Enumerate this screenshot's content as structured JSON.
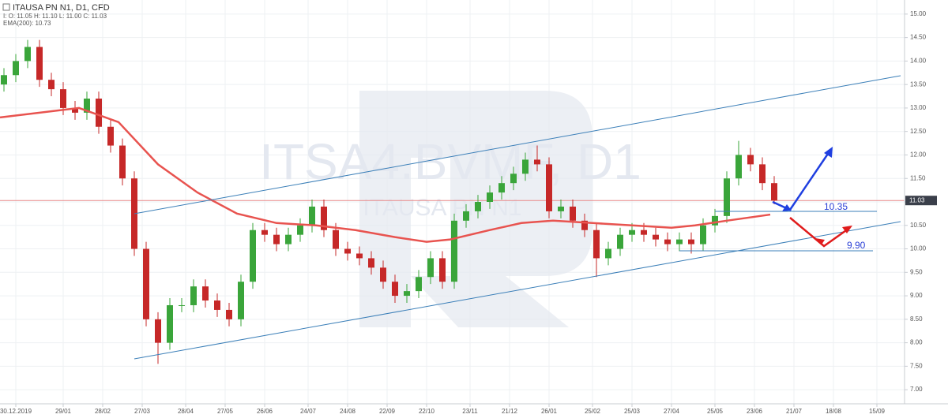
{
  "chart_data": {
    "type": "candlestick",
    "title": "ITAUSA PN N1, D1, CFD",
    "ohlc_label": "I: O: 11.05 H: 11.10 L: 11.00 C: 11.03",
    "ema_label": "EMA(200): 10.73",
    "watermark": "ITSA4.BVMF, D1",
    "watermark_sub": "ITAUSA PN N1",
    "up_color": "#3aa53a",
    "down_color": "#c62828",
    "x": [
      1,
      4,
      7,
      10,
      13,
      16,
      19,
      22,
      25,
      28,
      31,
      34,
      37,
      40,
      43,
      46,
      49,
      52,
      55,
      58,
      61,
      64,
      67,
      70,
      73,
      76,
      79,
      82,
      85,
      88,
      91,
      94,
      97,
      100,
      103,
      106,
      109,
      112,
      115,
      118,
      121,
      124,
      127,
      130,
      133,
      136,
      139,
      142,
      145,
      148,
      151,
      154,
      157,
      160,
      163,
      166,
      169,
      172,
      175,
      178,
      181,
      184,
      187,
      190,
      193,
      196
    ],
    "open": [
      13.5,
      13.7,
      14.0,
      14.3,
      13.6,
      13.4,
      13.0,
      12.9,
      13.2,
      12.6,
      12.2,
      11.5,
      10.0,
      8.5,
      8.0,
      8.8,
      8.8,
      9.2,
      8.9,
      8.7,
      8.5,
      9.3,
      10.4,
      10.3,
      10.1,
      10.3,
      10.5,
      10.9,
      10.4,
      10.0,
      9.9,
      9.8,
      9.6,
      9.3,
      9.0,
      9.1,
      9.4,
      9.8,
      9.3,
      10.6,
      10.8,
      11.0,
      11.2,
      11.4,
      11.6,
      11.9,
      11.8,
      10.8,
      10.9,
      10.6,
      10.4,
      9.8,
      10.0,
      10.3,
      10.4,
      10.3,
      10.2,
      10.1,
      10.2,
      10.1,
      10.5,
      10.7,
      11.5,
      12.0,
      11.8,
      11.4
    ],
    "high": [
      13.85,
      14.15,
      14.45,
      14.45,
      13.75,
      13.55,
      13.15,
      13.35,
      13.35,
      12.75,
      12.35,
      11.65,
      10.15,
      8.65,
      8.95,
      8.95,
      9.35,
      9.35,
      9.05,
      8.85,
      9.45,
      10.55,
      10.55,
      10.45,
      10.45,
      10.65,
      11.05,
      11.05,
      10.55,
      10.15,
      10.05,
      9.95,
      9.75,
      9.45,
      9.25,
      9.55,
      9.95,
      9.95,
      10.75,
      10.95,
      11.15,
      11.35,
      11.55,
      11.75,
      12.05,
      12.2,
      11.95,
      11.05,
      11.05,
      10.75,
      10.55,
      10.15,
      10.45,
      10.55,
      10.55,
      10.45,
      10.35,
      10.35,
      10.35,
      10.65,
      10.85,
      11.65,
      12.3,
      12.15,
      11.95,
      11.55
    ],
    "low": [
      13.35,
      13.55,
      13.85,
      13.45,
      13.25,
      12.85,
      12.75,
      12.75,
      12.45,
      12.05,
      11.35,
      9.85,
      8.35,
      7.55,
      7.85,
      8.65,
      8.65,
      8.75,
      8.55,
      8.35,
      8.35,
      9.15,
      10.15,
      9.95,
      9.95,
      10.15,
      10.35,
      10.25,
      9.85,
      9.75,
      9.65,
      9.45,
      9.15,
      8.85,
      8.85,
      8.95,
      9.25,
      9.15,
      9.15,
      10.45,
      10.65,
      10.85,
      11.05,
      11.25,
      11.45,
      11.65,
      10.65,
      10.65,
      10.45,
      10.25,
      9.4,
      9.65,
      9.85,
      10.15,
      10.15,
      10.05,
      9.95,
      9.95,
      9.9,
      9.95,
      10.35,
      10.55,
      11.35,
      11.65,
      11.25,
      10.95
    ],
    "close": [
      13.7,
      14.0,
      14.3,
      13.6,
      13.4,
      13.0,
      12.9,
      13.2,
      12.6,
      12.2,
      11.5,
      10.0,
      8.5,
      8.0,
      8.8,
      8.8,
      9.2,
      8.9,
      8.7,
      8.5,
      9.3,
      10.4,
      10.3,
      10.1,
      10.3,
      10.5,
      10.9,
      10.4,
      10.0,
      9.9,
      9.8,
      9.6,
      9.3,
      9.0,
      9.1,
      9.4,
      9.8,
      9.3,
      10.6,
      10.8,
      11.0,
      11.2,
      11.4,
      11.6,
      11.9,
      11.8,
      10.8,
      10.9,
      10.6,
      10.4,
      9.8,
      10.0,
      10.3,
      10.4,
      10.3,
      10.2,
      10.1,
      10.2,
      10.1,
      10.5,
      10.7,
      11.5,
      12.0,
      11.8,
      11.4,
      11.03
    ],
    "ema": {
      "color": "#e8534f",
      "x": [
        0,
        20,
        30,
        40,
        50,
        60,
        70,
        80,
        90,
        100,
        108,
        114,
        124,
        132,
        140,
        150,
        160,
        170,
        176,
        184,
        195
      ],
      "values": [
        12.8,
        13.0,
        12.7,
        11.8,
        11.2,
        10.75,
        10.55,
        10.5,
        10.4,
        10.25,
        10.15,
        10.2,
        10.4,
        10.55,
        10.6,
        10.55,
        10.5,
        10.45,
        10.5,
        10.6,
        10.73
      ]
    },
    "last_price": {
      "value": 11.03,
      "label": "11.03"
    },
    "level_labels": [
      "10.35",
      "9.90"
    ],
    "xlim": [
      0,
      229
    ],
    "ylim": [
      6.7,
      15.3
    ],
    "xticks": [
      {
        "value": 4,
        "label": "30.12.2019"
      },
      {
        "value": 16,
        "label": "29/01"
      },
      {
        "value": 26,
        "label": "28/02"
      },
      {
        "value": 36,
        "label": "27/03"
      },
      {
        "value": 47,
        "label": "28/04"
      },
      {
        "value": 57,
        "label": "27/05"
      },
      {
        "value": 67,
        "label": "26/06"
      },
      {
        "value": 78,
        "label": "24/07"
      },
      {
        "value": 88,
        "label": "24/08"
      },
      {
        "value": 98,
        "label": "22/09"
      },
      {
        "value": 108,
        "label": "22/10"
      },
      {
        "value": 119,
        "label": "23/11"
      },
      {
        "value": 129,
        "label": "21/12"
      },
      {
        "value": 139,
        "label": "26/01"
      },
      {
        "value": 150,
        "label": "25/02"
      },
      {
        "value": 160,
        "label": "25/03"
      },
      {
        "value": 170,
        "label": "27/04"
      },
      {
        "value": 181,
        "label": "25/05"
      },
      {
        "value": 191,
        "label": "23/06"
      },
      {
        "value": 201,
        "label": "21/07"
      },
      {
        "value": 211,
        "label": "18/08"
      },
      {
        "value": 222,
        "label": "15/09"
      }
    ],
    "yticks": [
      {
        "value": 7,
        "label": "7.00"
      },
      {
        "value": 7.5,
        "label": "7.50"
      },
      {
        "value": 8,
        "label": "8.00"
      },
      {
        "value": 8.5,
        "label": "8.50"
      },
      {
        "value": 9,
        "label": "9.00"
      },
      {
        "value": 9.5,
        "label": "9.50"
      },
      {
        "value": 10,
        "label": "10.00"
      },
      {
        "value": 10.5,
        "label": "10.50"
      },
      {
        "value": 11,
        "label": "11.00"
      },
      {
        "value": 11.5,
        "label": "11.50"
      },
      {
        "value": 12,
        "label": "12.00"
      },
      {
        "value": 12.5,
        "label": "12.50"
      },
      {
        "value": 13,
        "label": "13.00"
      },
      {
        "value": 13.5,
        "label": "13.50"
      },
      {
        "value": 14,
        "label": "14.00"
      },
      {
        "value": 14.5,
        "label": "14.50"
      },
      {
        "value": 15,
        "label": "15.00"
      }
    ],
    "grid": true
  }
}
